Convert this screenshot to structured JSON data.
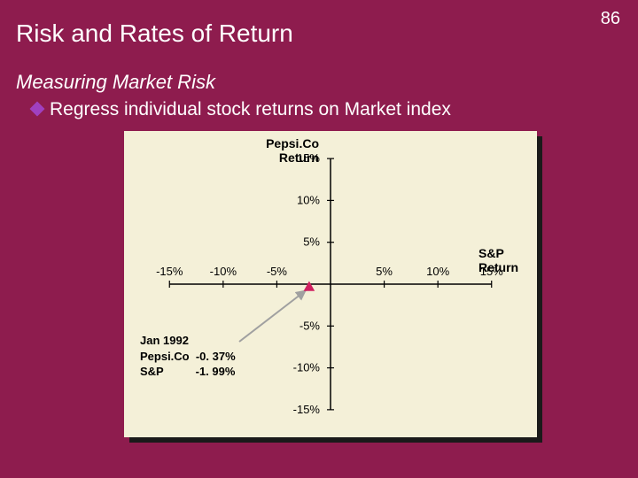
{
  "slide": {
    "background_color": "#8e1c4e",
    "page_number": "86",
    "page_number_color": "#ffffff",
    "page_number_fontsize": 20,
    "title": "Risk and Rates of Return",
    "title_color": "#ffffff",
    "title_fontsize": 28,
    "subtitle": "Measuring Market Risk",
    "subtitle_color": "#ffffff",
    "subtitle_fontsize": 22,
    "bullet_icon_color": "#a040c0",
    "bullet_text": "Regress individual stock returns on Market index",
    "bullet_color": "#ffffff",
    "bullet_fontsize": 21
  },
  "chart": {
    "type": "scatter",
    "plot_bg": "#f4f0d8",
    "shadow_color": "#1a1a1a",
    "axis_color": "#000000",
    "tick_label_color": "#000000",
    "tick_label_fontsize": 13,
    "axis_label_color": "#000000",
    "axis_label_fontsize": 14,
    "axis_label_weight": "bold",
    "y_axis_title_line1": "Pepsi.Co",
    "y_axis_title_line2": "Return",
    "x_axis_title_line1": "S&P",
    "x_axis_title_line2": "Return",
    "xlim": [
      -15,
      15
    ],
    "ylim": [
      -15,
      15
    ],
    "x_ticks": [
      -15,
      -10,
      -5,
      5,
      10,
      15
    ],
    "y_ticks": [
      -15,
      -10,
      -5,
      5,
      10,
      15
    ],
    "x_tick_labels": [
      "-15%",
      "-10%",
      "-5%",
      "5%",
      "10%",
      "15%"
    ],
    "y_tick_labels": [
      "-15%",
      "-10%",
      "-5%",
      "5%",
      "10%",
      "15%"
    ],
    "tick_length": 8,
    "data_point": {
      "x": -1.99,
      "y": -0.37
    },
    "marker_color": "#d02060",
    "marker_size": 7,
    "arrow_color": "#a0a0a0",
    "arrow_width": 2,
    "data_box": {
      "fontsize": 13,
      "font_weight": "bold",
      "color": "#000000",
      "line1": "Jan 1992",
      "line2": "Pepsi.Co  -0. 37%",
      "line3": "S&P          -1. 99%"
    }
  }
}
